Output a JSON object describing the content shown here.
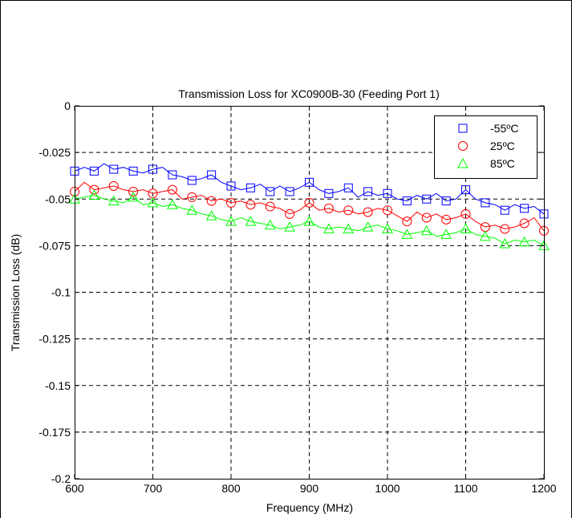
{
  "chart_data": {
    "type": "line",
    "title": "Transmission Loss for XC0900B-30 (Feeding Port 1)",
    "xlabel": "Frequency (MHz)",
    "ylabel": "Transmission Loss (dB)",
    "xlim": [
      600,
      1200
    ],
    "ylim": [
      -0.2,
      0
    ],
    "xticks": [
      "600",
      "700",
      "800",
      "900",
      "1000",
      "1100",
      "1200"
    ],
    "yticks": [
      "0",
      "-0.025",
      "-0.05",
      "-0.075",
      "-0.1",
      "-0.125",
      "-0.15",
      "-0.175",
      "-0.2"
    ],
    "grid": true,
    "legend_position": "top-right",
    "x": [
      600,
      612.5,
      625,
      637.5,
      650,
      662.5,
      675,
      687.5,
      700,
      712.5,
      725,
      737.5,
      750,
      762.5,
      775,
      787.5,
      800,
      812.5,
      825,
      837.5,
      850,
      862.5,
      875,
      887.5,
      900,
      912.5,
      925,
      937.5,
      950,
      962.5,
      975,
      987.5,
      1000,
      1012.5,
      1025,
      1037.5,
      1050,
      1062.5,
      1075,
      1087.5,
      1100,
      1112.5,
      1125,
      1137.5,
      1150,
      1162.5,
      1175,
      1187.5,
      1200
    ],
    "series": [
      {
        "name": "-55ºC",
        "color": "#0000ff",
        "marker": "square",
        "values": [
          -0.035,
          -0.033,
          -0.035,
          -0.031,
          -0.034,
          -0.033,
          -0.035,
          -0.036,
          -0.034,
          -0.033,
          -0.037,
          -0.038,
          -0.04,
          -0.039,
          -0.037,
          -0.041,
          -0.043,
          -0.045,
          -0.044,
          -0.042,
          -0.046,
          -0.043,
          -0.046,
          -0.044,
          -0.041,
          -0.045,
          -0.047,
          -0.046,
          -0.044,
          -0.049,
          -0.046,
          -0.048,
          -0.047,
          -0.05,
          -0.051,
          -0.048,
          -0.05,
          -0.047,
          -0.051,
          -0.05,
          -0.045,
          -0.05,
          -0.052,
          -0.053,
          -0.056,
          -0.053,
          -0.055,
          -0.054,
          -0.058
        ]
      },
      {
        "name": "25ºC",
        "color": "#ff0000",
        "marker": "circle",
        "values": [
          -0.046,
          -0.041,
          -0.045,
          -0.044,
          -0.043,
          -0.045,
          -0.046,
          -0.045,
          -0.047,
          -0.046,
          -0.045,
          -0.05,
          -0.049,
          -0.048,
          -0.051,
          -0.05,
          -0.052,
          -0.051,
          -0.053,
          -0.052,
          -0.054,
          -0.055,
          -0.058,
          -0.056,
          -0.052,
          -0.056,
          -0.055,
          -0.057,
          -0.056,
          -0.058,
          -0.057,
          -0.055,
          -0.056,
          -0.059,
          -0.062,
          -0.057,
          -0.06,
          -0.058,
          -0.061,
          -0.06,
          -0.058,
          -0.062,
          -0.065,
          -0.064,
          -0.066,
          -0.065,
          -0.063,
          -0.06,
          -0.067
        ]
      },
      {
        "name": "85ºC",
        "color": "#00ff00",
        "marker": "triangle",
        "values": [
          -0.05,
          -0.049,
          -0.048,
          -0.05,
          -0.051,
          -0.052,
          -0.049,
          -0.053,
          -0.052,
          -0.054,
          -0.053,
          -0.055,
          -0.056,
          -0.058,
          -0.059,
          -0.061,
          -0.062,
          -0.06,
          -0.062,
          -0.063,
          -0.064,
          -0.066,
          -0.065,
          -0.064,
          -0.062,
          -0.065,
          -0.066,
          -0.065,
          -0.066,
          -0.067,
          -0.065,
          -0.064,
          -0.066,
          -0.067,
          -0.069,
          -0.068,
          -0.067,
          -0.07,
          -0.069,
          -0.068,
          -0.066,
          -0.069,
          -0.07,
          -0.071,
          -0.074,
          -0.072,
          -0.073,
          -0.072,
          -0.075
        ]
      }
    ]
  }
}
